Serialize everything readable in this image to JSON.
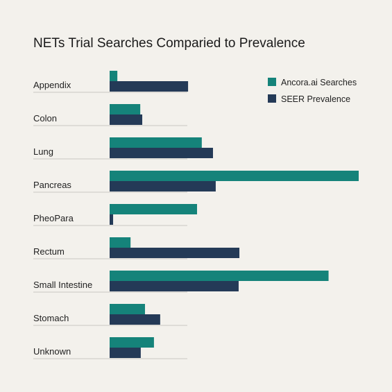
{
  "chart_data": {
    "type": "bar",
    "orientation": "horizontal",
    "title": "NETs Trial Searches Comparied to Prevalence",
    "xlabel": "",
    "ylabel": "",
    "xlim": [
      0,
      100
    ],
    "grid": false,
    "legend_position": "top-right",
    "categories": [
      "Appendix",
      "Colon",
      "Lung",
      "Pancreas",
      "PheoPara",
      "Rectum",
      "Small Intestine",
      "Stomach",
      "Unknown"
    ],
    "series": [
      {
        "name": "Ancora.ai Searches",
        "color": "#15837a",
        "values": [
          3.1,
          12.3,
          37.0,
          100,
          35.1,
          8.4,
          87.9,
          14.2,
          17.8
        ]
      },
      {
        "name": "SEER Prevalence",
        "color": "#243a57",
        "values": [
          31.5,
          13.1,
          41.5,
          42.6,
          1.4,
          52.1,
          51.8,
          20.3,
          12.5
        ]
      }
    ]
  }
}
